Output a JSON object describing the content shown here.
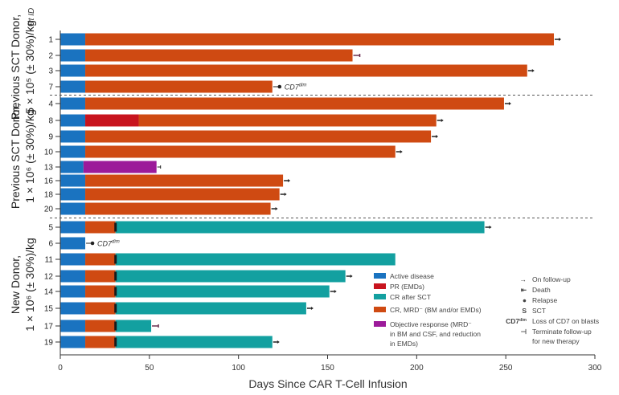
{
  "chart_data": {
    "type": "bar",
    "orientation": "horizontal-swimmer",
    "title": "",
    "xlabel": "Days Since CAR T-Cell Infusion",
    "ylabel": "Pt ID",
    "xlim": [
      0,
      300
    ],
    "xticks": [
      0,
      50,
      100,
      150,
      200,
      250,
      300
    ],
    "grid": false,
    "legend_position": "bottom-right",
    "colors": {
      "active": "#1a73c0",
      "pr": "#c8141e",
      "cr_sct": "#13a0a0",
      "cr_mrd": "#cf4a12",
      "objective": "#9c1a9a",
      "marker": "#222222",
      "separator": "#555555"
    },
    "groups": [
      {
        "label_line1": "Previous SCT Donor,",
        "label_line2": "5 × 10⁵ (± 30%)/kg",
        "rows": [
          0,
          3
        ]
      },
      {
        "label_line1": "Previous SCT Donor,",
        "label_line2": "1 × 10⁶ (± 30%)/kg",
        "rows": [
          4,
          11
        ]
      },
      {
        "label_line1": "New Donor,",
        "label_line2": "1 × 10⁶ (± 30%)/kg",
        "rows": [
          12,
          19
        ]
      }
    ],
    "patients": [
      {
        "id": "1",
        "segments": [
          {
            "state": "active",
            "start": 0,
            "end": 14
          },
          {
            "state": "cr_mrd",
            "start": 14,
            "end": 277
          }
        ],
        "end_marker": "on_follow_up"
      },
      {
        "id": "2",
        "segments": [
          {
            "state": "active",
            "start": 0,
            "end": 14
          },
          {
            "state": "cr_mrd",
            "start": 14,
            "end": 164
          }
        ],
        "end_marker": "death"
      },
      {
        "id": "3",
        "segments": [
          {
            "state": "active",
            "start": 0,
            "end": 14
          },
          {
            "state": "cr_mrd",
            "start": 14,
            "end": 262
          }
        ],
        "end_marker": "on_follow_up"
      },
      {
        "id": "7",
        "segments": [
          {
            "state": "active",
            "start": 0,
            "end": 14
          },
          {
            "state": "cr_mrd",
            "start": 14,
            "end": 119
          }
        ],
        "end_marker": "relapse",
        "annotation": "CD7dim"
      },
      {
        "id": "4",
        "segments": [
          {
            "state": "active",
            "start": 0,
            "end": 14
          },
          {
            "state": "cr_mrd",
            "start": 14,
            "end": 249
          }
        ],
        "end_marker": "on_follow_up"
      },
      {
        "id": "8",
        "segments": [
          {
            "state": "active",
            "start": 0,
            "end": 14
          },
          {
            "state": "pr",
            "start": 14,
            "end": 44
          },
          {
            "state": "cr_mrd",
            "start": 44,
            "end": 211
          }
        ],
        "end_marker": "on_follow_up"
      },
      {
        "id": "9",
        "segments": [
          {
            "state": "active",
            "start": 0,
            "end": 14
          },
          {
            "state": "cr_mrd",
            "start": 14,
            "end": 208
          }
        ],
        "end_marker": "on_follow_up"
      },
      {
        "id": "10",
        "segments": [
          {
            "state": "active",
            "start": 0,
            "end": 14
          },
          {
            "state": "cr_mrd",
            "start": 14,
            "end": 188
          }
        ],
        "end_marker": "on_follow_up"
      },
      {
        "id": "13",
        "segments": [
          {
            "state": "active",
            "start": 0,
            "end": 13
          },
          {
            "state": "objective",
            "start": 13,
            "end": 54
          }
        ],
        "end_marker": "terminate"
      },
      {
        "id": "16",
        "segments": [
          {
            "state": "active",
            "start": 0,
            "end": 14
          },
          {
            "state": "cr_mrd",
            "start": 14,
            "end": 125
          }
        ],
        "end_marker": "on_follow_up"
      },
      {
        "id": "18",
        "segments": [
          {
            "state": "active",
            "start": 0,
            "end": 14
          },
          {
            "state": "cr_mrd",
            "start": 14,
            "end": 123
          }
        ],
        "end_marker": "on_follow_up"
      },
      {
        "id": "20",
        "segments": [
          {
            "state": "active",
            "start": 0,
            "end": 14
          },
          {
            "state": "cr_mrd",
            "start": 14,
            "end": 118
          }
        ],
        "end_marker": "on_follow_up"
      },
      {
        "id": "5",
        "segments": [
          {
            "state": "active",
            "start": 0,
            "end": 14
          },
          {
            "state": "cr_mrd",
            "start": 14,
            "end": 31
          },
          {
            "state": "cr_sct",
            "start": 31,
            "end": 238
          }
        ],
        "sct_day": 31,
        "end_marker": "on_follow_up"
      },
      {
        "id": "6",
        "segments": [
          {
            "state": "active",
            "start": 0,
            "end": 14
          }
        ],
        "end_marker": "relapse",
        "annotation": "CD7dim"
      },
      {
        "id": "11",
        "segments": [
          {
            "state": "active",
            "start": 0,
            "end": 14
          },
          {
            "state": "cr_mrd",
            "start": 14,
            "end": 31
          },
          {
            "state": "cr_sct",
            "start": 31,
            "end": 188
          }
        ],
        "sct_day": 31,
        "end_marker": "none"
      },
      {
        "id": "12",
        "segments": [
          {
            "state": "active",
            "start": 0,
            "end": 14
          },
          {
            "state": "cr_mrd",
            "start": 14,
            "end": 31
          },
          {
            "state": "cr_sct",
            "start": 31,
            "end": 160
          }
        ],
        "sct_day": 31,
        "end_marker": "on_follow_up"
      },
      {
        "id": "14",
        "segments": [
          {
            "state": "active",
            "start": 0,
            "end": 14
          },
          {
            "state": "cr_mrd",
            "start": 14,
            "end": 31
          },
          {
            "state": "cr_sct",
            "start": 31,
            "end": 151
          }
        ],
        "sct_day": 31,
        "end_marker": "on_follow_up"
      },
      {
        "id": "15",
        "segments": [
          {
            "state": "active",
            "start": 0,
            "end": 14
          },
          {
            "state": "cr_mrd",
            "start": 14,
            "end": 31
          },
          {
            "state": "cr_sct",
            "start": 31,
            "end": 138
          }
        ],
        "sct_day": 31,
        "end_marker": "on_follow_up"
      },
      {
        "id": "17",
        "segments": [
          {
            "state": "active",
            "start": 0,
            "end": 14
          },
          {
            "state": "cr_mrd",
            "start": 14,
            "end": 31
          },
          {
            "state": "cr_sct",
            "start": 31,
            "end": 51
          }
        ],
        "sct_day": 31,
        "end_marker": "death"
      },
      {
        "id": "19",
        "segments": [
          {
            "state": "active",
            "start": 0,
            "end": 14
          },
          {
            "state": "cr_mrd",
            "start": 14,
            "end": 31
          },
          {
            "state": "cr_sct",
            "start": 31,
            "end": 119
          }
        ],
        "sct_day": 31,
        "end_marker": "on_follow_up"
      }
    ],
    "legend_states": [
      {
        "state": "active",
        "label": "Active disease"
      },
      {
        "state": "pr",
        "label": "PR (EMDs)"
      },
      {
        "state": "cr_sct",
        "label": "CR after SCT"
      },
      {
        "state": "cr_mrd",
        "label": "CR, MRD⁻ (BM and/or EMDs)"
      },
      {
        "state": "objective",
        "label_lines": [
          "Objective response (MRD⁻",
          "in BM and CSF, and reduction",
          "in EMDs)"
        ]
      }
    ],
    "legend_markers": [
      {
        "marker": "on_follow_up",
        "symbol": "→",
        "label": "On follow-up"
      },
      {
        "marker": "death",
        "symbol": "⇤",
        "label": "Death"
      },
      {
        "marker": "relapse",
        "symbol": "●",
        "label": "Relapse"
      },
      {
        "marker": "sct",
        "symbol": "S",
        "label": "SCT"
      },
      {
        "marker": "cd7dim",
        "symbol": "CD7dim",
        "label": "Loss of CD7 on blasts"
      },
      {
        "marker": "terminate",
        "symbol": "⊣",
        "label_lines": [
          "Terminate follow-up",
          "for new therapy"
        ]
      }
    ],
    "annotation_text": "CD7",
    "annotation_sup": "dim"
  }
}
